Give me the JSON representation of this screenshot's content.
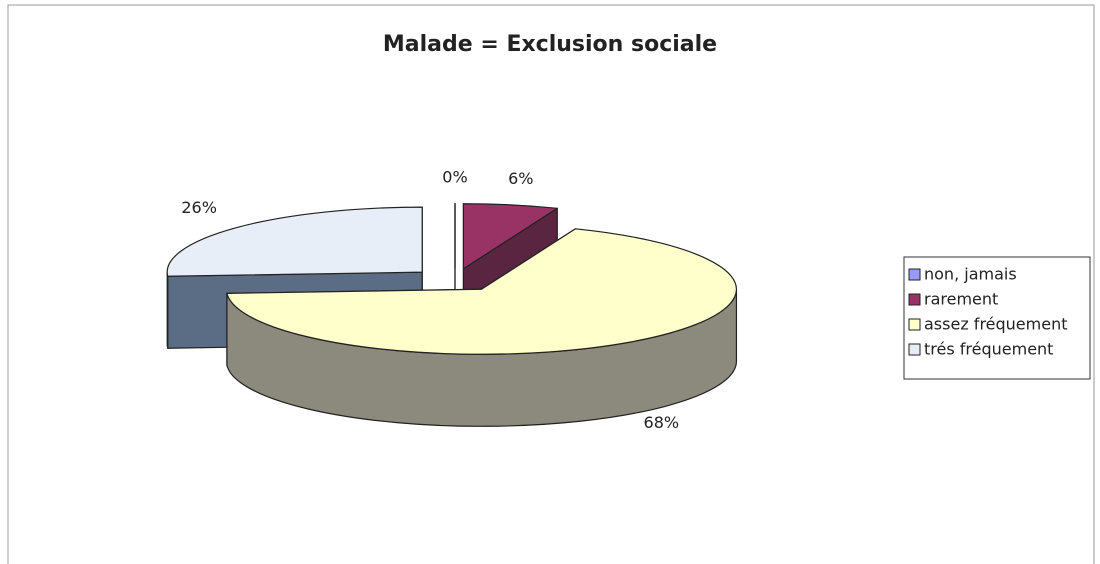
{
  "chart_data": {
    "type": "pie3d",
    "title": "Malade = Exclusion sociale",
    "categories": [
      "non, jamais",
      "rarement",
      "assez fréquement",
      "trés fréquement"
    ],
    "values": [
      0,
      6,
      68,
      26
    ],
    "value_labels": [
      "0%",
      "6%",
      "68%",
      "26%"
    ],
    "colors": [
      "#9999ff",
      "#993366",
      "#ffffcc",
      "#e8eef8"
    ],
    "side_colors": [
      "#5c5c99",
      "#5a2540",
      "#8c8a7c",
      "#5b6d85"
    ],
    "legend": "right"
  }
}
